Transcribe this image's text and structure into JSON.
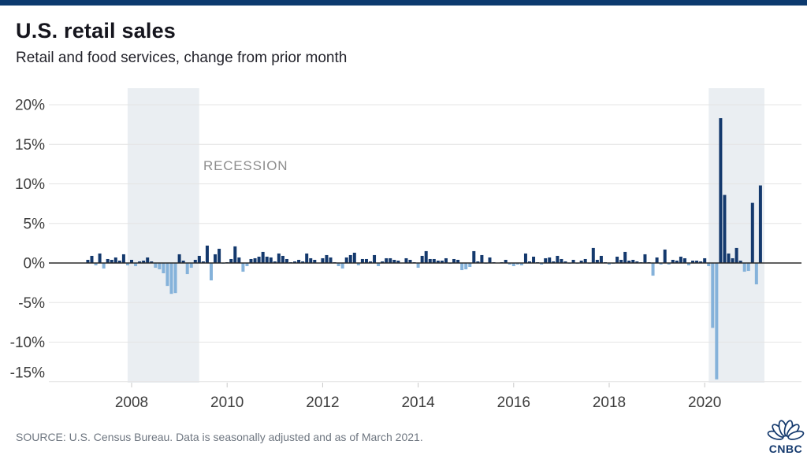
{
  "header": {
    "title": "U.S. retail sales",
    "subtitle": "Retail and food services, change from prior month"
  },
  "footer": {
    "source": "SOURCE: U.S. Census Bureau. Data is seasonally adjusted and as of March 2021.",
    "logo_text": "CNBC"
  },
  "colors": {
    "top_stripe": "#0c3a6e",
    "positive_bar": "#14396d",
    "negative_bar": "#85b2da",
    "recession_band": "#eaeef2",
    "gridline": "#e4e4e4",
    "axis_line": "#2b2b2b",
    "tick_label": "#3d3d3d",
    "recession_label": "#8d8d8d",
    "brand_navy": "#14396d"
  },
  "chart_data": {
    "type": "bar",
    "title": "U.S. retail sales",
    "subtitle": "Retail and food services, change from prior month",
    "unit": "% change from prior month",
    "freq": "monthly",
    "start_month": "2007-02",
    "end_month": "2021-03",
    "ylim": [
      -15.2,
      22.1
    ],
    "grid": true,
    "y_ticks": [
      20,
      15,
      10,
      5,
      0,
      -5,
      -10,
      -15
    ],
    "y_tick_labels": [
      "20%",
      "15%",
      "10%",
      "5%",
      "0%",
      "-5%",
      "-10%",
      "-15%"
    ],
    "x_ticks": [
      2008,
      2010,
      2012,
      2014,
      2016,
      2018,
      2020
    ],
    "recession_label": "RECESSION",
    "recessions": [
      {
        "from": "2007-12",
        "to": "2009-06"
      },
      {
        "from": "2020-02",
        "to": "2021-04"
      }
    ],
    "values": [
      0.4,
      0.9,
      -0.3,
      1.2,
      -0.7,
      0.5,
      0.4,
      0.7,
      0.3,
      1.1,
      -0.3,
      0.4,
      -0.4,
      0.2,
      0.3,
      0.7,
      0.2,
      -0.6,
      -0.8,
      -1.3,
      -2.9,
      -3.9,
      -3.8,
      1.1,
      0.3,
      -1.4,
      -0.6,
      0.4,
      0.9,
      0.2,
      2.2,
      -2.2,
      1.1,
      1.8,
      -0.1,
      0.1,
      0.5,
      2.1,
      0.7,
      -1.1,
      -0.4,
      0.5,
      0.6,
      0.8,
      1.4,
      0.8,
      0.7,
      0.2,
      1.2,
      0.9,
      0.5,
      0.1,
      0.2,
      0.4,
      0.2,
      1.2,
      0.6,
      0.4,
      0.0,
      0.6,
      1.0,
      0.7,
      0.1,
      -0.4,
      -0.7,
      0.7,
      1.0,
      1.3,
      -0.3,
      0.5,
      0.5,
      0.2,
      1.0,
      -0.4,
      0.2,
      0.6,
      0.6,
      0.4,
      0.3,
      0.0,
      0.6,
      0.4,
      0.1,
      -0.6,
      0.9,
      1.5,
      0.5,
      0.5,
      0.3,
      0.3,
      0.6,
      -0.1,
      0.5,
      0.4,
      -0.9,
      -0.8,
      -0.5,
      1.5,
      0.2,
      1.0,
      -0.1,
      0.7,
      0.1,
      0.0,
      0.1,
      0.4,
      -0.2,
      -0.4,
      -0.2,
      -0.3,
      1.2,
      0.2,
      0.8,
      0.1,
      -0.2,
      0.6,
      0.7,
      0.2,
      0.9,
      0.5,
      0.2,
      -0.1,
      0.4,
      -0.1,
      0.3,
      0.5,
      -0.1,
      1.9,
      0.4,
      0.9,
      0.1,
      -0.2,
      -0.1,
      0.8,
      0.4,
      1.4,
      0.3,
      0.4,
      0.2,
      0.1,
      1.1,
      0.1,
      -1.6,
      0.7,
      -0.2,
      1.7,
      -0.2,
      0.4,
      0.3,
      0.8,
      0.6,
      -0.3,
      0.3,
      0.3,
      0.2,
      0.6,
      -0.4,
      -8.2,
      -14.7,
      18.3,
      8.6,
      1.2,
      0.6,
      1.9,
      0.3,
      -1.1,
      -1.0,
      7.6,
      -2.7,
      9.8
    ]
  }
}
